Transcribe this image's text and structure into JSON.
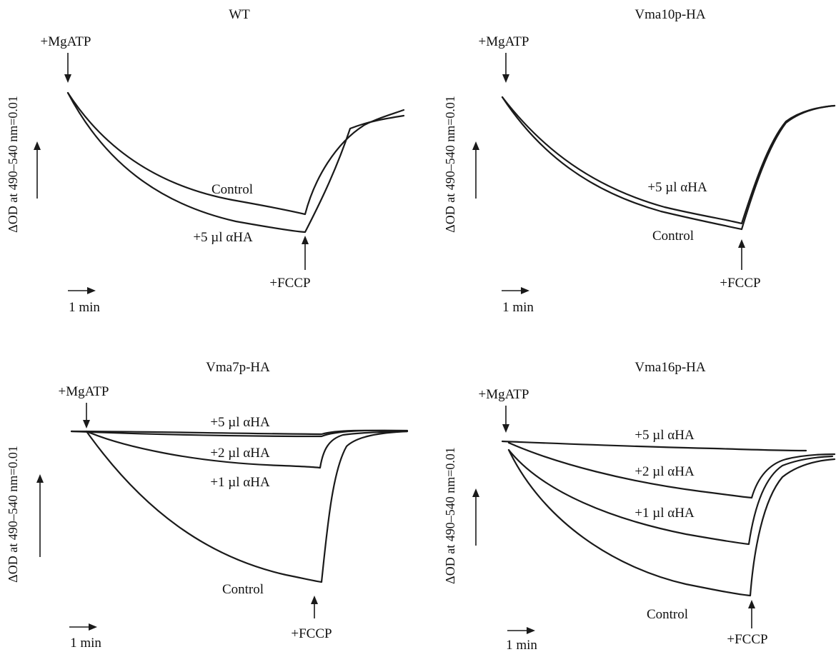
{
  "chart_data": [
    {
      "type": "line",
      "title": "WT",
      "ylabel": "ΔOD at 490–540 nm=0.01",
      "time_scale_label": "1 min",
      "annotations": {
        "start": "+MgATP",
        "end": "+FCCP"
      },
      "series": [
        {
          "name": "Control",
          "values": [
            0,
            -0.5,
            -0.9,
            -1.3,
            -1.6,
            -1.8,
            -1.9,
            -2.0,
            -0.8,
            -0.4,
            -0.3
          ]
        },
        {
          "name": "+5 µl αHA",
          "values": [
            0,
            -0.6,
            -1.1,
            -1.5,
            -1.8,
            -2.0,
            -2.1,
            -2.2,
            -1.3,
            -0.5,
            -0.4
          ]
        }
      ]
    },
    {
      "type": "line",
      "title": "Vma10p-HA",
      "ylabel": "ΔOD at 490–540 nm=0.01",
      "time_scale_label": "1 min",
      "annotations": {
        "start": "+MgATP",
        "end": "+FCCP"
      },
      "series": [
        {
          "name": "+5 µl αHA",
          "values": [
            0,
            -0.5,
            -1.0,
            -1.4,
            -1.7,
            -1.9,
            -2.0,
            -2.1,
            -0.9,
            -0.3,
            -0.1
          ]
        },
        {
          "name": "Control",
          "values": [
            0,
            -0.55,
            -1.05,
            -1.45,
            -1.75,
            -1.95,
            -2.05,
            -2.15,
            -0.9,
            -0.3,
            -0.1
          ]
        }
      ]
    },
    {
      "type": "line",
      "title": "Vma7p-HA",
      "ylabel": "ΔOD at 490–540 nm=0.01",
      "time_scale_label": "1 min",
      "annotations": {
        "start": "+MgATP",
        "end": "+FCCP"
      },
      "series": [
        {
          "name": "+5 µl αHA",
          "values": [
            0,
            -0.02,
            -0.04,
            -0.05,
            -0.06,
            -0.07,
            -0.08,
            -0.08,
            0.0,
            0.02,
            0.02
          ]
        },
        {
          "name": "+2 µl αHA",
          "values": [
            0,
            -0.15,
            -0.25,
            -0.32,
            -0.38,
            -0.42,
            -0.45,
            -0.46,
            -0.1,
            0.0,
            0.0
          ]
        },
        {
          "name": "+1 µl αHA",
          "values": [
            0,
            -0.15,
            -0.25,
            -0.32,
            -0.38,
            -0.42,
            -0.45,
            -0.46,
            -0.1,
            0.0,
            0.0
          ]
        },
        {
          "name": "Control",
          "values": [
            0,
            -0.9,
            -1.5,
            -1.9,
            -2.2,
            -2.4,
            -2.5,
            -2.6,
            -0.8,
            -0.05,
            0.0
          ]
        }
      ]
    },
    {
      "type": "line",
      "title": "Vma16p-HA",
      "ylabel": "ΔOD at 490–540 nm=0.01",
      "time_scale_label": "1 min",
      "annotations": {
        "start": "+MgATP",
        "end": "+FCCP"
      },
      "series": [
        {
          "name": "+5 µl αHA",
          "values": [
            0,
            -0.02,
            -0.04,
            -0.06,
            -0.07,
            -0.08,
            -0.09,
            -0.1,
            -0.1,
            -0.1,
            -0.1
          ]
        },
        {
          "name": "+2 µl αHA",
          "values": [
            0,
            -0.3,
            -0.5,
            -0.65,
            -0.78,
            -0.88,
            -0.95,
            -1.0,
            -0.2,
            0.0,
            0.05
          ]
        },
        {
          "name": "+1 µl αHA",
          "values": [
            0,
            -0.6,
            -1.0,
            -1.25,
            -1.45,
            -1.6,
            -1.7,
            -1.75,
            -0.3,
            -0.05,
            0.0
          ]
        },
        {
          "name": "Control",
          "values": [
            0,
            -0.9,
            -1.5,
            -1.9,
            -2.15,
            -2.35,
            -2.45,
            -2.5,
            -0.5,
            -0.1,
            0.0
          ]
        }
      ]
    }
  ]
}
